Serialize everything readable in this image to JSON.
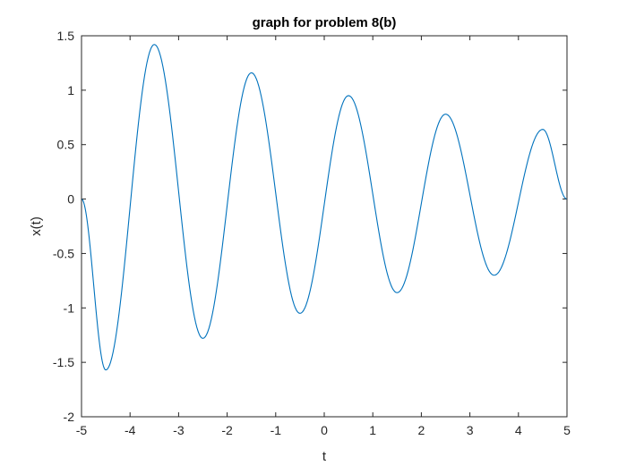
{
  "chart_data": {
    "type": "line",
    "title": "graph for problem 8(b)",
    "xlabel": "t",
    "ylabel": "x(t)",
    "xlim": [
      -5,
      5
    ],
    "ylim": [
      -2,
      1.5
    ],
    "xticks": [
      -5,
      -4,
      -3,
      -2,
      -1,
      0,
      1,
      2,
      3,
      4,
      5
    ],
    "xtick_labels": [
      "-5",
      "-4",
      "-3",
      "-2",
      "-1",
      "0",
      "1",
      "2",
      "3",
      "4",
      "5"
    ],
    "yticks": [
      -2,
      -1.5,
      -1,
      -0.5,
      0,
      0.5,
      1,
      1.5
    ],
    "ytick_labels": [
      "-2",
      "-1.5",
      "-1",
      "-0.5",
      "0",
      "0.5",
      "1",
      "1.5"
    ],
    "grid": false,
    "box": true,
    "series": [
      {
        "color": "#0072BD",
        "x": [
          -5,
          -4.5,
          -3.5,
          -2.5,
          -1.5,
          -0.5,
          0.5,
          1.5,
          2.5,
          3.5,
          4.5,
          5
        ],
        "values": [
          0,
          -1.57,
          1.42,
          -1.28,
          1.16,
          -1.05,
          0.95,
          -0.86,
          0.78,
          -0.7,
          0.64,
          0
        ]
      }
    ]
  }
}
